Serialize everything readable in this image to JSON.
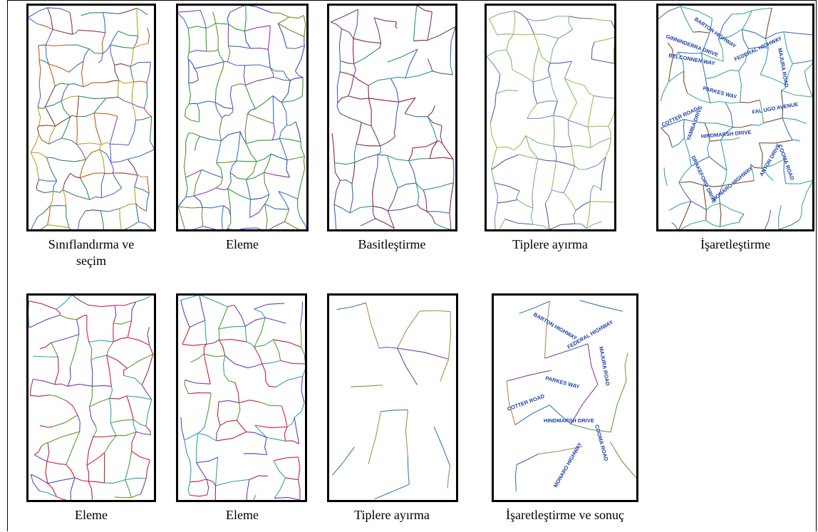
{
  "panels": [
    {
      "caption": "Sınıflandırma ve seçim"
    },
    {
      "caption": "Eleme"
    },
    {
      "caption": "Basitleştirme"
    },
    {
      "caption": "Tiplere ayırma"
    },
    {
      "caption": "İşaretleştirme",
      "labels": [
        "BARTON HIGHWAY",
        "GINNINDERRA DRIVE",
        "BELCONNEN WAY",
        "FEDERAL HIGHWAY",
        "MAJURA ROAD",
        "PARKES WAY",
        "COTTER ROAD",
        "FAL UGO AVENUE",
        "YAMBA DRIVE",
        "HINDMARSH DRIVE",
        "DRAKEFORD DRIVE",
        "MONARO HIGHWAY",
        "ANTON DRIVE",
        "COOMA ROAD"
      ]
    },
    {
      "caption": "Eleme"
    },
    {
      "caption": "Eleme"
    },
    {
      "caption": "Tiplere ayırma"
    },
    {
      "caption": "İşaretleştirme ve sonuç",
      "labels": [
        "BARTON HIGHWAY",
        "FEDERAL HIGHWAY",
        "MAJURA ROAD",
        "PARKES WAY",
        "COTTER ROAD",
        "HINDMARSH DRIVE",
        "MONARO HIGHWAY",
        "COOMA ROAD"
      ]
    }
  ]
}
